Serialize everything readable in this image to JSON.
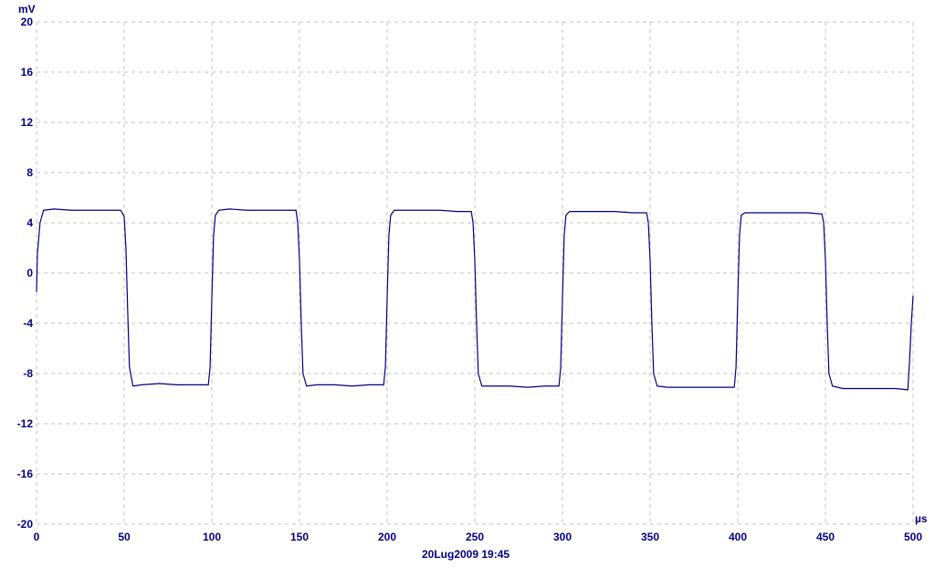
{
  "chart_data": {
    "type": "line",
    "title": "",
    "ylabel": "mV",
    "xlabel": "µs",
    "timestamp": "20Lug2009  19:45",
    "xlim": [
      0,
      500
    ],
    "ylim": [
      -20,
      20
    ],
    "x_ticks": [
      "0",
      "50",
      "100",
      "150",
      "200",
      "250",
      "300",
      "350",
      "400",
      "450",
      "500"
    ],
    "y_ticks": [
      "20",
      "16",
      "12",
      "8",
      "4",
      "0",
      "-4",
      "-8",
      "-12",
      "-16",
      "-20"
    ],
    "grid": true,
    "legend": "none",
    "colors": {
      "trace": "#00007f",
      "axis_text": "#00007f",
      "grid": "#c0c0c0"
    },
    "series": [
      {
        "x": [
          0,
          0.5,
          2,
          4,
          10,
          20,
          30,
          40,
          48,
          50,
          51,
          52,
          53,
          55,
          60,
          70,
          80,
          90,
          98,
          99,
          100,
          101,
          102,
          104,
          110,
          120,
          130,
          140,
          148,
          149,
          150,
          151,
          152,
          154,
          160,
          170,
          180,
          190,
          198,
          199,
          200,
          201,
          202,
          204,
          210,
          220,
          230,
          240,
          248,
          249,
          250,
          251,
          252,
          254,
          260,
          270,
          280,
          290,
          298,
          299,
          300,
          301,
          302,
          304,
          310,
          320,
          330,
          340,
          348,
          349,
          350,
          351,
          352,
          354,
          360,
          370,
          380,
          390,
          398,
          399,
          400,
          401,
          402,
          404,
          410,
          420,
          430,
          440,
          448,
          449,
          450,
          451,
          452,
          454,
          460,
          470,
          480,
          490,
          497,
          498,
          499,
          500
        ],
        "y": [
          -1.5,
          1.5,
          4.0,
          5.0,
          5.1,
          5.0,
          5.0,
          5.0,
          5.0,
          4.5,
          2.0,
          -3.0,
          -7.5,
          -9.0,
          -8.9,
          -8.8,
          -8.9,
          -8.9,
          -8.9,
          -7.5,
          -2.0,
          3.0,
          4.6,
          5.0,
          5.1,
          5.0,
          5.0,
          5.0,
          5.0,
          4.0,
          1.0,
          -4.0,
          -8.0,
          -9.0,
          -8.9,
          -8.9,
          -9.0,
          -8.9,
          -8.9,
          -7.5,
          -2.0,
          3.0,
          4.6,
          5.0,
          5.0,
          5.0,
          5.0,
          4.9,
          4.9,
          4.0,
          1.0,
          -4.0,
          -8.0,
          -9.0,
          -9.0,
          -9.0,
          -9.1,
          -9.0,
          -9.0,
          -7.5,
          -2.0,
          3.0,
          4.6,
          4.9,
          4.9,
          4.9,
          4.9,
          4.8,
          4.8,
          4.0,
          1.0,
          -4.0,
          -8.0,
          -9.0,
          -9.1,
          -9.1,
          -9.1,
          -9.1,
          -9.1,
          -7.5,
          -2.0,
          3.0,
          4.6,
          4.8,
          4.8,
          4.8,
          4.8,
          4.8,
          4.7,
          4.0,
          1.0,
          -4.0,
          -8.0,
          -9.0,
          -9.2,
          -9.2,
          -9.2,
          -9.2,
          -9.3,
          -7.0,
          -4.0,
          -1.8
        ]
      }
    ]
  }
}
